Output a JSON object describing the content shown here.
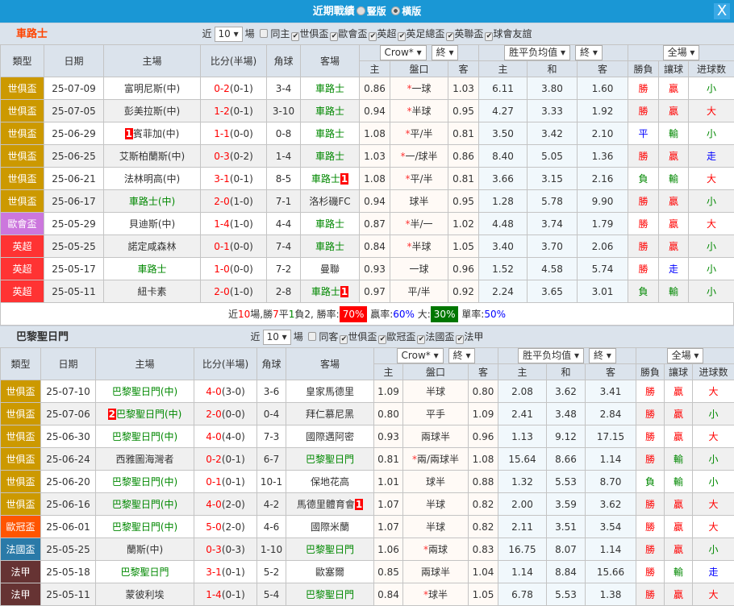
{
  "title": {
    "text": "近期戰績",
    "opt1": "豎版",
    "opt2": "橫版",
    "close": "X"
  },
  "colors": {
    "title_bar": "#1a97d5",
    "win": "#ff0000",
    "draw": "#0000ff",
    "loss": "#008800"
  },
  "sections": [
    {
      "team": "車路士",
      "team_color": "#ff4400",
      "near": "近",
      "count": "10",
      "unit": "場",
      "same": "同主",
      "leagues": [
        "世俱盃",
        "歐會盃",
        "英超",
        "英足總盃",
        "英聯盃",
        "球會友誼"
      ],
      "headers": {
        "type": "類型",
        "date": "日期",
        "home": "主場",
        "score": "比分(半場)",
        "corner": "角球",
        "away": "客場",
        "odds_company": "Crow*",
        "odds_end": "終",
        "avg": "胜平负均值",
        "avg_end": "終",
        "scope": "全場",
        "o1": "主",
        "line": "盤口",
        "o2": "客",
        "h": "主",
        "d": "和",
        "a": "客",
        "wl": "勝負",
        "ah": "讓球",
        "ou": "进球数"
      },
      "rows": [
        {
          "type": "世俱盃",
          "tc": "#cc9900",
          "date": "25-07-09",
          "home": "富明尼斯(中)",
          "hh": false,
          "hc": "",
          "s": "0-2",
          "ht": "(0-1)",
          "corner": "3-4",
          "away": "車路士",
          "ah_l": true,
          "ac": "",
          "o1": "0.86",
          "line": "一球",
          "star": true,
          "o2": "1.03",
          "h": "6.11",
          "d": "3.80",
          "a": "1.60",
          "wl": "勝",
          "ahr": "贏",
          "ou": "小"
        },
        {
          "type": "世俱盃",
          "tc": "#cc9900",
          "date": "25-07-05",
          "home": "彭美拉斯(中)",
          "hh": false,
          "hc": "",
          "s": "1-2",
          "ht": "(0-1)",
          "corner": "3-10",
          "away": "車路士",
          "ah_l": true,
          "ac": "",
          "o1": "0.94",
          "line": "半球",
          "star": true,
          "o2": "0.95",
          "h": "4.27",
          "d": "3.33",
          "a": "1.92",
          "wl": "勝",
          "ahr": "贏",
          "ou": "大"
        },
        {
          "type": "世俱盃",
          "tc": "#cc9900",
          "date": "25-06-29",
          "home": "賓菲加(中)",
          "hh": false,
          "hc": "1",
          "s": "1-1",
          "ht": "(0-0)",
          "corner": "0-8",
          "away": "車路士",
          "ah_l": true,
          "ac": "",
          "o1": "1.08",
          "line": "平/半",
          "star": true,
          "o2": "0.81",
          "h": "3.50",
          "d": "3.42",
          "a": "2.10",
          "wl": "平",
          "ahr": "輸",
          "ou": "小"
        },
        {
          "type": "世俱盃",
          "tc": "#cc9900",
          "date": "25-06-25",
          "home": "艾斯柏蘭斯(中)",
          "hh": false,
          "hc": "",
          "s": "0-3",
          "ht": "(0-2)",
          "corner": "1-4",
          "away": "車路士",
          "ah_l": true,
          "ac": "",
          "o1": "1.03",
          "line": "一/球半",
          "star": true,
          "o2": "0.86",
          "h": "8.40",
          "d": "5.05",
          "a": "1.36",
          "wl": "勝",
          "ahr": "贏",
          "ou": "走"
        },
        {
          "type": "世俱盃",
          "tc": "#cc9900",
          "date": "25-06-21",
          "home": "法林明高(中)",
          "hh": false,
          "hc": "",
          "s": "3-1",
          "ht": "(0-1)",
          "corner": "8-5",
          "away": "車路士",
          "ah_l": true,
          "ac": "1",
          "o1": "1.08",
          "line": "平/半",
          "star": true,
          "o2": "0.81",
          "h": "3.66",
          "d": "3.15",
          "a": "2.16",
          "wl": "負",
          "ahr": "輸",
          "ou": "大"
        },
        {
          "type": "世俱盃",
          "tc": "#cc9900",
          "date": "25-06-17",
          "home": "車路士(中)",
          "hh": true,
          "hc": "",
          "s": "2-0",
          "ht": "(1-0)",
          "corner": "7-1",
          "away": "洛杉磯FC",
          "ah_l": false,
          "ac": "",
          "o1": "0.94",
          "line": "球半",
          "star": false,
          "o2": "0.95",
          "h": "1.28",
          "d": "5.78",
          "a": "9.90",
          "wl": "勝",
          "ahr": "贏",
          "ou": "小"
        },
        {
          "type": "歐會盃",
          "tc": "#cc77dd",
          "date": "25-05-29",
          "home": "貝迪斯(中)",
          "hh": false,
          "hc": "",
          "s": "1-4",
          "ht": "(1-0)",
          "corner": "4-4",
          "away": "車路士",
          "ah_l": true,
          "ac": "",
          "o1": "0.87",
          "line": "半/一",
          "star": true,
          "o2": "1.02",
          "h": "4.48",
          "d": "3.74",
          "a": "1.79",
          "wl": "勝",
          "ahr": "贏",
          "ou": "大"
        },
        {
          "type": "英超",
          "tc": "#ff3333",
          "date": "25-05-25",
          "home": "諾定咸森林",
          "hh": false,
          "hc": "",
          "s": "0-1",
          "ht": "(0-0)",
          "corner": "7-4",
          "away": "車路士",
          "ah_l": true,
          "ac": "",
          "o1": "0.84",
          "line": "半球",
          "star": true,
          "o2": "1.05",
          "h": "3.40",
          "d": "3.70",
          "a": "2.06",
          "wl": "勝",
          "ahr": "贏",
          "ou": "小"
        },
        {
          "type": "英超",
          "tc": "#ff3333",
          "date": "25-05-17",
          "home": "車路士",
          "hh": true,
          "hc": "",
          "s": "1-0",
          "ht": "(0-0)",
          "corner": "7-2",
          "away": "曼聯",
          "ah_l": false,
          "ac": "",
          "o1": "0.93",
          "line": "一球",
          "star": false,
          "o2": "0.96",
          "h": "1.52",
          "d": "4.58",
          "a": "5.74",
          "wl": "勝",
          "ahr": "走",
          "ou": "小"
        },
        {
          "type": "英超",
          "tc": "#ff3333",
          "date": "25-05-11",
          "home": "紐卡素",
          "hh": false,
          "hc": "",
          "s": "2-0",
          "ht": "(1-0)",
          "corner": "2-8",
          "away": "車路士",
          "ah_l": true,
          "ac": "1",
          "o1": "0.97",
          "line": "平/半",
          "star": false,
          "o2": "0.92",
          "h": "2.24",
          "d": "3.65",
          "a": "3.01",
          "wl": "負",
          "ahr": "輸",
          "ou": "小"
        }
      ],
      "summary": {
        "p1": "近",
        "n": "10",
        "p2": "場,勝",
        "w": "7",
        "p3": "平",
        "dr": "1",
        "p4": "負2, 勝率:",
        "winrate": "70%",
        "p5": " 贏率:",
        "ahrate": "60%",
        "p6": " 大:",
        "over": "30%",
        "p7": " 單率:",
        "odd": "50%"
      }
    },
    {
      "team": "巴黎聖日門",
      "team_color": "#333333",
      "near": "近",
      "count": "10",
      "unit": "場",
      "same": "同客",
      "leagues": [
        "世俱盃",
        "歐冠盃",
        "法國盃",
        "法甲"
      ],
      "headers": {
        "type": "類型",
        "date": "日期",
        "home": "主場",
        "score": "比分(半場)",
        "corner": "角球",
        "away": "客場",
        "odds_company": "Crow*",
        "odds_end": "終",
        "avg": "胜平负均值",
        "avg_end": "終",
        "scope": "全場",
        "o1": "主",
        "line": "盤口",
        "o2": "客",
        "h": "主",
        "d": "和",
        "a": "客",
        "wl": "勝負",
        "ah": "讓球",
        "ou": "进球数"
      },
      "rows": [
        {
          "type": "世俱盃",
          "tc": "#cc9900",
          "date": "25-07-10",
          "home": "巴黎聖日門(中)",
          "hh": true,
          "hc": "",
          "s": "4-0",
          "ht": "(3-0)",
          "corner": "3-6",
          "away": "皇家馬德里",
          "ah_l": false,
          "ac": "",
          "o1": "1.09",
          "line": "半球",
          "star": false,
          "o2": "0.80",
          "h": "2.08",
          "d": "3.62",
          "a": "3.41",
          "wl": "勝",
          "ahr": "贏",
          "ou": "大"
        },
        {
          "type": "世俱盃",
          "tc": "#cc9900",
          "date": "25-07-06",
          "home": "巴黎聖日門(中)",
          "hh": true,
          "hc": "2",
          "s": "2-0",
          "ht": "(0-0)",
          "corner": "0-4",
          "away": "拜仁慕尼黑",
          "ah_l": false,
          "ac": "",
          "o1": "0.80",
          "line": "平手",
          "star": false,
          "o2": "1.09",
          "h": "2.41",
          "d": "3.48",
          "a": "2.84",
          "wl": "勝",
          "ahr": "贏",
          "ou": "小"
        },
        {
          "type": "世俱盃",
          "tc": "#cc9900",
          "date": "25-06-30",
          "home": "巴黎聖日門(中)",
          "hh": true,
          "hc": "",
          "s": "4-0",
          "ht": "(4-0)",
          "corner": "7-3",
          "away": "國際邁阿密",
          "ah_l": false,
          "ac": "",
          "o1": "0.93",
          "line": "兩球半",
          "star": false,
          "o2": "0.96",
          "h": "1.13",
          "d": "9.12",
          "a": "17.15",
          "wl": "勝",
          "ahr": "贏",
          "ou": "大"
        },
        {
          "type": "世俱盃",
          "tc": "#cc9900",
          "date": "25-06-24",
          "home": "西雅圖海灣者",
          "hh": false,
          "hc": "",
          "s": "0-2",
          "ht": "(0-1)",
          "corner": "6-7",
          "away": "巴黎聖日門",
          "ah_l": true,
          "ac": "",
          "o1": "0.81",
          "line": "兩/兩球半",
          "star": true,
          "o2": "1.08",
          "h": "15.64",
          "d": "8.66",
          "a": "1.14",
          "wl": "勝",
          "ahr": "輸",
          "ou": "小"
        },
        {
          "type": "世俱盃",
          "tc": "#cc9900",
          "date": "25-06-20",
          "home": "巴黎聖日門(中)",
          "hh": true,
          "hc": "",
          "s": "0-1",
          "ht": "(0-1)",
          "corner": "10-1",
          "away": "保地花高",
          "ah_l": false,
          "ac": "",
          "o1": "1.01",
          "line": "球半",
          "star": false,
          "o2": "0.88",
          "h": "1.32",
          "d": "5.53",
          "a": "8.70",
          "wl": "負",
          "ahr": "輸",
          "ou": "小"
        },
        {
          "type": "世俱盃",
          "tc": "#cc9900",
          "date": "25-06-16",
          "home": "巴黎聖日門(中)",
          "hh": true,
          "hc": "",
          "s": "4-0",
          "ht": "(2-0)",
          "corner": "4-2",
          "away": "馬德里體育會",
          "ah_l": false,
          "ac": "1",
          "o1": "1.07",
          "line": "半球",
          "star": false,
          "o2": "0.82",
          "h": "2.00",
          "d": "3.59",
          "a": "3.62",
          "wl": "勝",
          "ahr": "贏",
          "ou": "大"
        },
        {
          "type": "歐冠盃",
          "tc": "#ff5500",
          "date": "25-06-01",
          "home": "巴黎聖日門(中)",
          "hh": true,
          "hc": "",
          "s": "5-0",
          "ht": "(2-0)",
          "corner": "4-6",
          "away": "國際米蘭",
          "ah_l": false,
          "ac": "",
          "o1": "1.07",
          "line": "半球",
          "star": false,
          "o2": "0.82",
          "h": "2.11",
          "d": "3.51",
          "a": "3.54",
          "wl": "勝",
          "ahr": "贏",
          "ou": "大"
        },
        {
          "type": "法國盃",
          "tc": "#2a7aa8",
          "date": "25-05-25",
          "home": "蘭斯(中)",
          "hh": false,
          "hc": "",
          "s": "0-3",
          "ht": "(0-3)",
          "corner": "1-10",
          "away": "巴黎聖日門",
          "ah_l": true,
          "ac": "",
          "o1": "1.06",
          "line": "兩球",
          "star": true,
          "o2": "0.83",
          "h": "16.75",
          "d": "8.07",
          "a": "1.14",
          "wl": "勝",
          "ahr": "贏",
          "ou": "小"
        },
        {
          "type": "法甲",
          "tc": "#663333",
          "date": "25-05-18",
          "home": "巴黎聖日門",
          "hh": true,
          "hc": "",
          "s": "3-1",
          "ht": "(0-1)",
          "corner": "5-2",
          "away": "歐塞爾",
          "ah_l": false,
          "ac": "",
          "o1": "0.85",
          "line": "兩球半",
          "star": false,
          "o2": "1.04",
          "h": "1.14",
          "d": "8.84",
          "a": "15.66",
          "wl": "勝",
          "ahr": "輸",
          "ou": "走"
        },
        {
          "type": "法甲",
          "tc": "#663333",
          "date": "25-05-11",
          "home": "蒙彼利埃",
          "hh": false,
          "hc": "",
          "s": "1-4",
          "ht": "(0-1)",
          "corner": "5-4",
          "away": "巴黎聖日門",
          "ah_l": true,
          "ac": "",
          "o1": "0.84",
          "line": "球半",
          "star": true,
          "o2": "1.05",
          "h": "6.78",
          "d": "5.53",
          "a": "1.38",
          "wl": "勝",
          "ahr": "贏",
          "ou": "大"
        }
      ]
    }
  ]
}
